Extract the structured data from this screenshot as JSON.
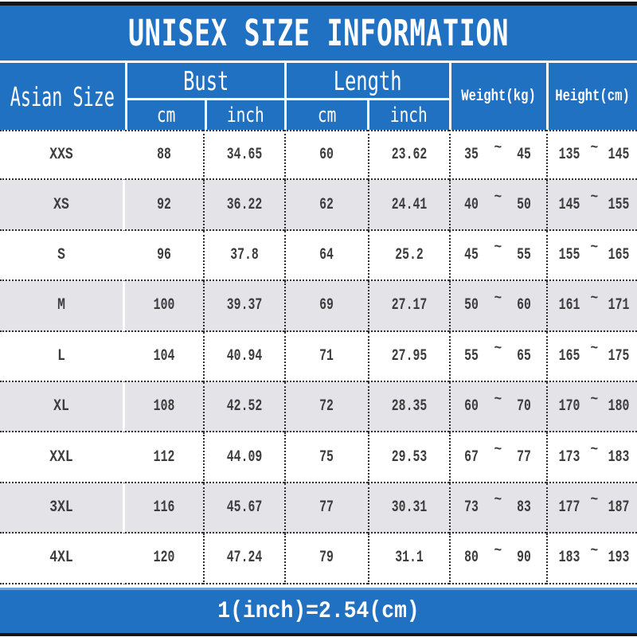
{
  "title": "UNISEX SIZE INFORMATION",
  "table": {
    "header": {
      "asian_size": "Asian Size",
      "bust": "Bust",
      "length": "Length",
      "cm": "cm",
      "inch": "inch",
      "weight": "Weight(kg)",
      "height": "Height(cm)"
    }
  },
  "tilde": "~",
  "rows": [
    {
      "size": "XXS",
      "bust_cm": "88",
      "bust_inch": "34.65",
      "length_cm": "60",
      "length_inch": "23.62",
      "weight_min": "35",
      "weight_max": "45",
      "height_min": "135",
      "height_max": "145"
    },
    {
      "size": "XS",
      "bust_cm": "92",
      "bust_inch": "36.22",
      "length_cm": "62",
      "length_inch": "24.41",
      "weight_min": "40",
      "weight_max": "50",
      "height_min": "145",
      "height_max": "155"
    },
    {
      "size": "S",
      "bust_cm": "96",
      "bust_inch": "37.8",
      "length_cm": "64",
      "length_inch": "25.2",
      "weight_min": "45",
      "weight_max": "55",
      "height_min": "155",
      "height_max": "165"
    },
    {
      "size": "M",
      "bust_cm": "100",
      "bust_inch": "39.37",
      "length_cm": "69",
      "length_inch": "27.17",
      "weight_min": "50",
      "weight_max": "60",
      "height_min": "161",
      "height_max": "171"
    },
    {
      "size": "L",
      "bust_cm": "104",
      "bust_inch": "40.94",
      "length_cm": "71",
      "length_inch": "27.95",
      "weight_min": "55",
      "weight_max": "65",
      "height_min": "165",
      "height_max": "175"
    },
    {
      "size": "XL",
      "bust_cm": "108",
      "bust_inch": "42.52",
      "length_cm": "72",
      "length_inch": "28.35",
      "weight_min": "60",
      "weight_max": "70",
      "height_min": "170",
      "height_max": "180"
    },
    {
      "size": "XXL",
      "bust_cm": "112",
      "bust_inch": "44.09",
      "length_cm": "75",
      "length_inch": "29.53",
      "weight_min": "67",
      "weight_max": "77",
      "height_min": "173",
      "height_max": "183"
    },
    {
      "size": "3XL",
      "bust_cm": "116",
      "bust_inch": "45.67",
      "length_cm": "77",
      "length_inch": "30.31",
      "weight_min": "73",
      "weight_max": "83",
      "height_min": "177",
      "height_max": "187"
    },
    {
      "size": "4XL",
      "bust_cm": "120",
      "bust_inch": "47.24",
      "length_cm": "79",
      "length_inch": "31.1",
      "weight_min": "80",
      "weight_max": "90",
      "height_min": "183",
      "height_max": "193"
    }
  ],
  "footer": {
    "note": "1(inch)=2.54(cm)"
  },
  "colors": {
    "blue": "#2171c3",
    "alt_row": "#e4e3e8",
    "bar": "#141414",
    "body_text": "#3d3d3d",
    "white": "#ffffff"
  },
  "chart_data": {
    "type": "table",
    "title": "UNISEX SIZE INFORMATION",
    "columns": [
      "Asian Size",
      "Bust cm",
      "Bust inch",
      "Length cm",
      "Length inch",
      "Weight(kg)",
      "Height(cm)"
    ],
    "rows": [
      [
        "XXS",
        "88",
        "34.65",
        "60",
        "23.62",
        "35~45",
        "135~145"
      ],
      [
        "XS",
        "92",
        "36.22",
        "62",
        "24.41",
        "40~50",
        "145~155"
      ],
      [
        "S",
        "96",
        "37.8",
        "64",
        "25.2",
        "45~55",
        "155~165"
      ],
      [
        "M",
        "100",
        "39.37",
        "69",
        "27.17",
        "50~60",
        "161~171"
      ],
      [
        "L",
        "104",
        "40.94",
        "71",
        "27.95",
        "55~65",
        "165~175"
      ],
      [
        "XL",
        "108",
        "42.52",
        "72",
        "28.35",
        "60~70",
        "170~180"
      ],
      [
        "XXL",
        "112",
        "44.09",
        "75",
        "29.53",
        "67~77",
        "173~183"
      ],
      [
        "3XL",
        "116",
        "45.67",
        "77",
        "30.31",
        "73~83",
        "177~187"
      ],
      [
        "4XL",
        "120",
        "47.24",
        "79",
        "31.1",
        "80~90",
        "183~193"
      ]
    ],
    "note": "1(inch)=2.54(cm)"
  }
}
